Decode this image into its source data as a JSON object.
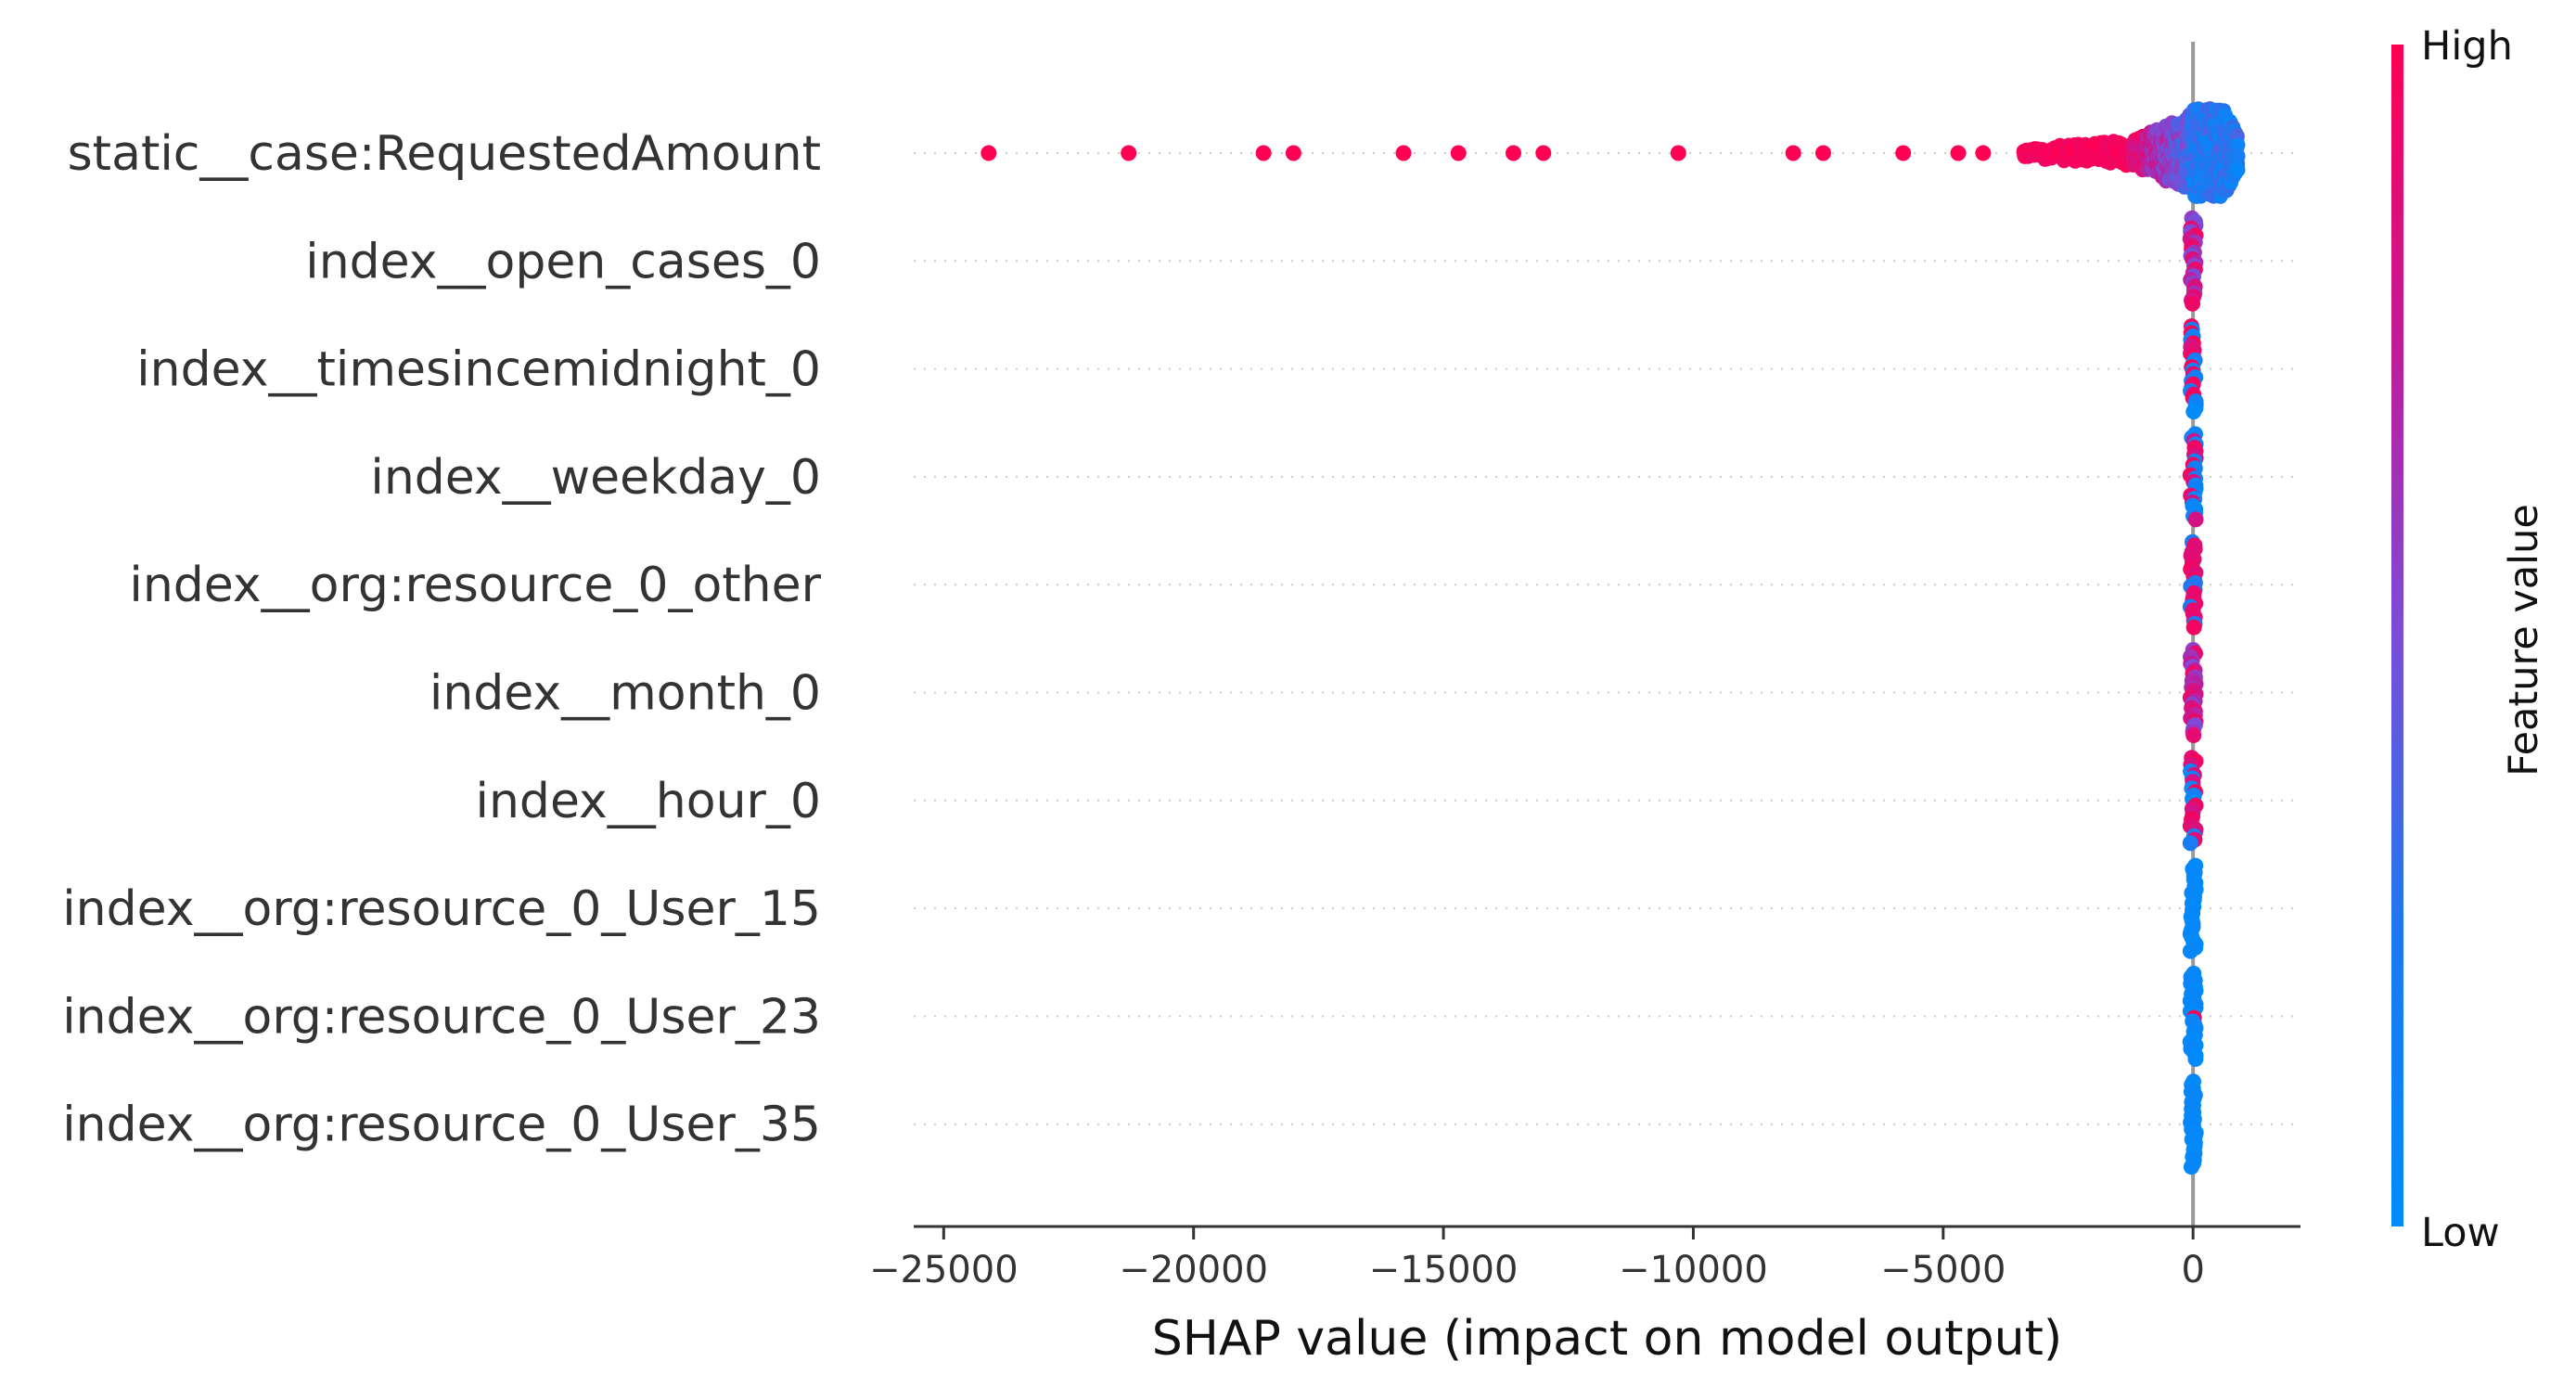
{
  "chart_data": {
    "type": "scatter",
    "subtype": "shap-beeswarm",
    "title": "",
    "xlabel": "SHAP value (impact on model output)",
    "ylabel": "",
    "xlim": [
      -25600,
      2150
    ],
    "xticks": [
      -25000,
      -20000,
      -15000,
      -10000,
      -5000,
      0
    ],
    "xtick_labels": [
      "−25000",
      "−20000",
      "−15000",
      "−10000",
      "−5000",
      "0"
    ],
    "grid": "dotted horizontal guide per feature",
    "zero_line": true,
    "colorbar": {
      "label": "Feature value",
      "high_label": "High",
      "low_label": "Low",
      "low_color": "#008bfb",
      "high_color": "#ff0052"
    },
    "features": [
      {
        "name": "static__case:RequestedAmount",
        "outliers": [
          -24100,
          -21300,
          -18600,
          -18000,
          -15800,
          -14700,
          -13600,
          -13000,
          -10300,
          -8000,
          -7400,
          -5800,
          -4700,
          -4200
        ],
        "dense_tail_start": -3400,
        "range": [
          -3400,
          1000
        ]
      },
      {
        "name": "index__open_cases_0",
        "range": [
          -20,
          20
        ],
        "color_pattern": "mixed-purple"
      },
      {
        "name": "index__timesincemidnight_0",
        "range": [
          -20,
          20
        ],
        "color_pattern": "mixed"
      },
      {
        "name": "index__weekday_0",
        "range": [
          -20,
          20
        ],
        "color_pattern": "mixed"
      },
      {
        "name": "index__org:resource_0_other",
        "range": [
          -20,
          20
        ],
        "color_pattern": "mostly-high"
      },
      {
        "name": "index__month_0",
        "range": [
          -20,
          20
        ],
        "color_pattern": "mixed-purple"
      },
      {
        "name": "index__hour_0",
        "range": [
          -20,
          20
        ],
        "color_pattern": "mixed"
      },
      {
        "name": "index__org:resource_0_User_15",
        "range": [
          -20,
          20
        ],
        "color_pattern": "low"
      },
      {
        "name": "index__org:resource_0_User_23",
        "range": [
          -20,
          20
        ],
        "color_pattern": "low-one-high"
      },
      {
        "name": "index__org:resource_0_User_35",
        "range": [
          -20,
          20
        ],
        "color_pattern": "low"
      }
    ]
  }
}
